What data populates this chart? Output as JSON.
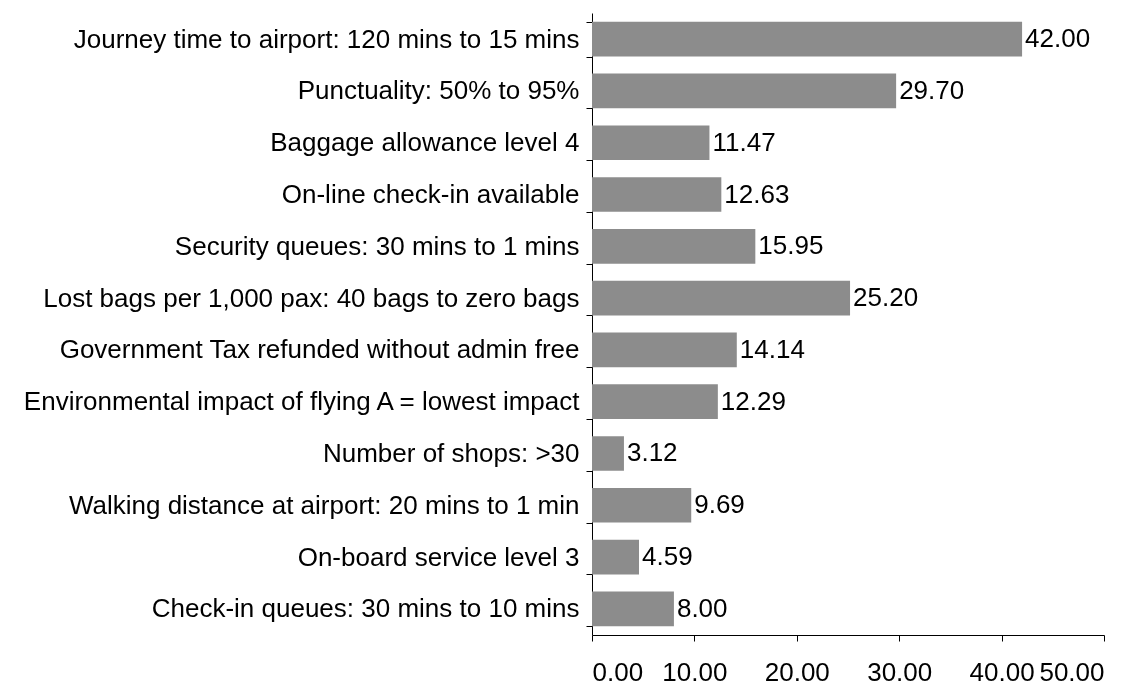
{
  "chart_data": {
    "type": "bar",
    "orientation": "horizontal",
    "categories": [
      "Journey time to airport: 120 mins to 15 mins",
      "Punctuality: 50% to 95%",
      "Baggage allowance level 4",
      "On-line check-in available",
      "Security queues: 30 mins to 1 mins",
      "Lost bags per 1,000 pax: 40 bags to zero bags",
      "Government Tax refunded without admin free",
      "Environmental impact of flying A = lowest impact",
      "Number of shops: >30",
      "Walking distance at airport: 20 mins to 1 min",
      "On-board service level 3",
      "Check-in queues: 30 mins to 10 mins"
    ],
    "values": [
      42.0,
      29.7,
      11.47,
      12.63,
      15.95,
      25.2,
      14.14,
      12.29,
      3.12,
      9.69,
      4.59,
      8.0
    ],
    "value_labels": [
      "42.00",
      "29.70",
      "11.47",
      "12.63",
      "15.95",
      "25.20",
      "14.14",
      "12.29",
      "3.12",
      "9.69",
      "4.59",
      "8.00"
    ],
    "color": "#8c8c8c",
    "xlim": [
      0,
      50
    ],
    "xticks": [
      {
        "value": 0,
        "label": "0.00"
      },
      {
        "value": 10,
        "label": "10.00"
      },
      {
        "value": 20,
        "label": "20.00"
      },
      {
        "value": 30,
        "label": "30.00"
      },
      {
        "value": 40,
        "label": "40.00"
      },
      {
        "value": 50,
        "label": "50.00"
      }
    ],
    "grid": false
  }
}
